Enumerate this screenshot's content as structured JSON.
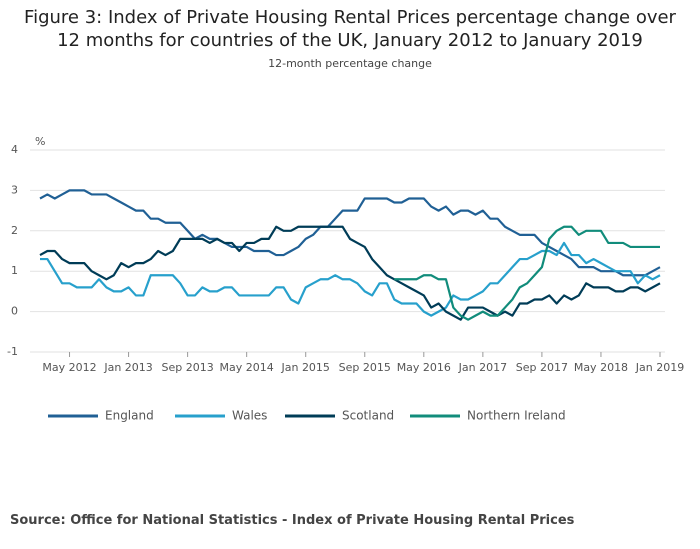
{
  "chart_data": {
    "type": "line",
    "title": "Figure 3: Index of Private Housing Rental Prices percentage change over 12 months for countries of the UK, January 2012 to January 2019",
    "subtitle": "12-month percentage change",
    "y_label": "%",
    "source": "Source: Office for National Statistics - Index of Private Housing Rental Prices",
    "categories": [
      null,
      null,
      null,
      null,
      "May 2012",
      null,
      null,
      null,
      null,
      null,
      null,
      null,
      "Jan 2013",
      null,
      null,
      null,
      null,
      null,
      null,
      null,
      "Sep 2013",
      null,
      null,
      null,
      null,
      null,
      null,
      null,
      "May 2014",
      null,
      null,
      null,
      null,
      null,
      null,
      null,
      "Jan 2015",
      null,
      null,
      null,
      null,
      null,
      null,
      null,
      "Sep 2015",
      null,
      null,
      null,
      null,
      null,
      null,
      null,
      "May 2016",
      null,
      null,
      null,
      null,
      null,
      null,
      null,
      "Jan 2017",
      null,
      null,
      null,
      null,
      null,
      null,
      null,
      "Sep 2017",
      null,
      null,
      null,
      null,
      null,
      null,
      null,
      "May 2018",
      null,
      null,
      null,
      null,
      null,
      null,
      null,
      "Jan 2019"
    ],
    "ylim": [
      -1,
      4
    ],
    "yticks": [
      -1,
      0,
      1,
      2,
      3,
      4
    ],
    "grid": true,
    "series": [
      {
        "name": "England",
        "color": "#206095",
        "values": [
          2.8,
          2.9,
          2.8,
          2.9,
          3.0,
          3.0,
          3.0,
          2.9,
          2.9,
          2.9,
          2.8,
          2.7,
          2.6,
          2.5,
          2.5,
          2.3,
          2.3,
          2.2,
          2.2,
          2.2,
          2.0,
          1.8,
          1.9,
          1.8,
          1.8,
          1.7,
          1.6,
          1.6,
          1.6,
          1.5,
          1.5,
          1.5,
          1.4,
          1.4,
          1.5,
          1.6,
          1.8,
          1.9,
          2.1,
          2.1,
          2.3,
          2.5,
          2.5,
          2.5,
          2.8,
          2.8,
          2.8,
          2.8,
          2.7,
          2.7,
          2.8,
          2.8,
          2.8,
          2.6,
          2.5,
          2.6,
          2.4,
          2.5,
          2.5,
          2.4,
          2.5,
          2.3,
          2.3,
          2.1,
          2.0,
          1.9,
          1.9,
          1.9,
          1.7,
          1.6,
          1.5,
          1.4,
          1.3,
          1.1,
          1.1,
          1.1,
          1.0,
          1.0,
          1.0,
          0.9,
          0.9,
          0.9,
          0.9,
          1.0,
          1.1
        ]
      },
      {
        "name": "Wales",
        "color": "#27a0cc",
        "values": [
          1.3,
          1.3,
          1.0,
          0.7,
          0.7,
          0.6,
          0.6,
          0.6,
          0.8,
          0.6,
          0.5,
          0.5,
          0.6,
          0.4,
          0.4,
          0.9,
          0.9,
          0.9,
          0.9,
          0.7,
          0.4,
          0.4,
          0.6,
          0.5,
          0.5,
          0.6,
          0.6,
          0.4,
          0.4,
          0.4,
          0.4,
          0.4,
          0.6,
          0.6,
          0.3,
          0.2,
          0.6,
          0.7,
          0.8,
          0.8,
          0.9,
          0.8,
          0.8,
          0.7,
          0.5,
          0.4,
          0.7,
          0.7,
          0.3,
          0.2,
          0.2,
          0.2,
          0.0,
          -0.1,
          0.0,
          0.1,
          0.4,
          0.3,
          0.3,
          0.4,
          0.5,
          0.7,
          0.7,
          0.9,
          1.1,
          1.3,
          1.3,
          1.4,
          1.5,
          1.5,
          1.4,
          1.7,
          1.4,
          1.4,
          1.2,
          1.3,
          1.2,
          1.1,
          1.0,
          1.0,
          1.0,
          0.7,
          0.9,
          0.8,
          0.9
        ]
      },
      {
        "name": "Scotland",
        "color": "#003c57",
        "values": [
          1.4,
          1.5,
          1.5,
          1.3,
          1.2,
          1.2,
          1.2,
          1.0,
          0.9,
          0.8,
          0.9,
          1.2,
          1.1,
          1.2,
          1.2,
          1.3,
          1.5,
          1.4,
          1.5,
          1.8,
          1.8,
          1.8,
          1.8,
          1.7,
          1.8,
          1.7,
          1.7,
          1.5,
          1.7,
          1.7,
          1.8,
          1.8,
          2.1,
          2.0,
          2.0,
          2.1,
          2.1,
          2.1,
          2.1,
          2.1,
          2.1,
          2.1,
          1.8,
          1.7,
          1.6,
          1.3,
          1.1,
          0.9,
          0.8,
          0.7,
          0.6,
          0.5,
          0.4,
          0.1,
          0.2,
          0.0,
          -0.1,
          -0.2,
          0.1,
          0.1,
          0.1,
          0.0,
          -0.1,
          0.0,
          -0.1,
          0.2,
          0.2,
          0.3,
          0.3,
          0.4,
          0.2,
          0.4,
          0.3,
          0.4,
          0.7,
          0.6,
          0.6,
          0.6,
          0.5,
          0.5,
          0.6,
          0.6,
          0.5,
          0.6,
          0.7
        ]
      },
      {
        "name": "Northern Ireland",
        "color": "#118c7b",
        "values": [
          null,
          null,
          null,
          null,
          null,
          null,
          null,
          null,
          null,
          null,
          null,
          null,
          null,
          null,
          null,
          null,
          null,
          null,
          null,
          null,
          null,
          null,
          null,
          null,
          null,
          null,
          null,
          null,
          null,
          null,
          null,
          null,
          null,
          null,
          null,
          null,
          null,
          null,
          null,
          null,
          null,
          null,
          null,
          null,
          null,
          null,
          null,
          null,
          0.8,
          0.8,
          0.8,
          0.8,
          0.9,
          0.9,
          0.8,
          0.8,
          0.1,
          -0.1,
          -0.2,
          -0.1,
          0.0,
          -0.1,
          -0.1,
          0.1,
          0.3,
          0.6,
          0.7,
          0.9,
          1.1,
          1.8,
          2.0,
          2.1,
          2.1,
          1.9,
          2.0,
          2.0,
          2.0,
          1.7,
          1.7,
          1.7,
          1.6,
          1.6,
          1.6,
          1.6,
          1.6
        ]
      }
    ]
  }
}
